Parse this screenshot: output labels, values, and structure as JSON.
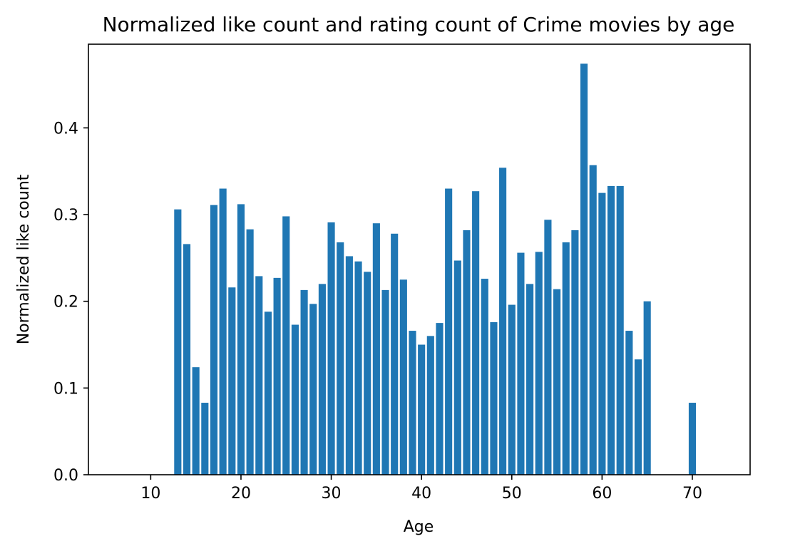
{
  "chart_data": {
    "type": "bar",
    "title": "Normalized like count and rating count of Crime movies by age",
    "xlabel": "Age",
    "ylabel": "Normalized like count",
    "xlim": [
      3.1,
      76.4
    ],
    "ylim": [
      0,
      0.4965
    ],
    "xticks": [
      "10",
      "20",
      "30",
      "40",
      "50",
      "60",
      "70"
    ],
    "yticks": [
      "0.0",
      "0.1",
      "0.2",
      "0.3",
      "0.4"
    ],
    "grid": false,
    "legend": "none",
    "bar_color": "#1f77b4",
    "bar_width": 0.8,
    "x": [
      13,
      14,
      15,
      16,
      17,
      18,
      19,
      20,
      21,
      22,
      23,
      24,
      25,
      26,
      27,
      28,
      29,
      30,
      31,
      32,
      33,
      34,
      35,
      36,
      37,
      38,
      39,
      40,
      41,
      42,
      43,
      44,
      45,
      46,
      47,
      48,
      49,
      50,
      51,
      52,
      53,
      54,
      55,
      56,
      57,
      58,
      59,
      60,
      61,
      62,
      63,
      64,
      65,
      70
    ],
    "values": [
      0.306,
      0.266,
      0.124,
      0.083,
      0.311,
      0.33,
      0.216,
      0.312,
      0.283,
      0.229,
      0.188,
      0.227,
      0.298,
      0.173,
      0.213,
      0.197,
      0.22,
      0.291,
      0.268,
      0.252,
      0.246,
      0.234,
      0.29,
      0.213,
      0.278,
      0.225,
      0.166,
      0.15,
      0.16,
      0.175,
      0.33,
      0.247,
      0.282,
      0.327,
      0.226,
      0.176,
      0.354,
      0.196,
      0.256,
      0.22,
      0.257,
      0.294,
      0.214,
      0.268,
      0.282,
      0.474,
      0.357,
      0.325,
      0.333,
      0.333,
      0.166,
      0.133,
      0.2,
      0.083
    ]
  }
}
